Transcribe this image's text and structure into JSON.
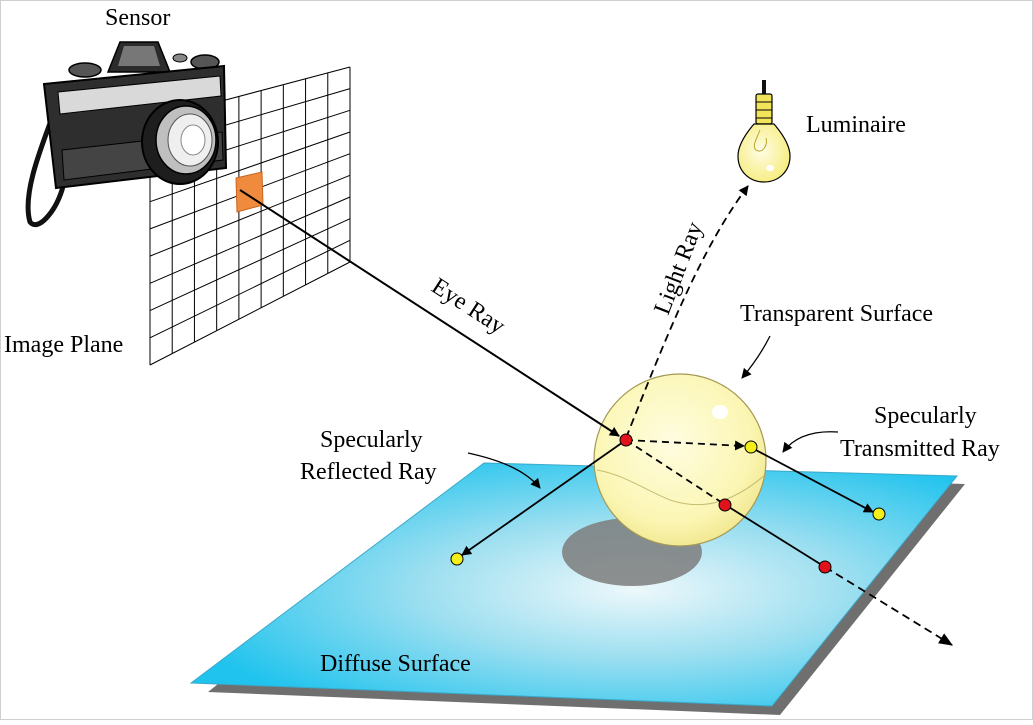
{
  "labels": {
    "sensor": "Sensor",
    "luminaire": "Luminaire",
    "image_plane": "Image Plane",
    "eye_ray": "Eye Ray",
    "light_ray": "Light Ray",
    "transparent_surface": "Transparent Surface",
    "specularly_reflected_line1": "Specularly",
    "specularly_reflected_line2": "Reflected Ray",
    "specularly_transmitted_line1": "Specularly",
    "specularly_transmitted_line2": "Transmitted Ray",
    "diffuse_surface": "Diffuse Surface"
  },
  "colors": {
    "plane_edge": "#1fc3ee",
    "plane_center": "#e9f6fa",
    "plane_shadow": "#6f6f6f",
    "sphere_fill": "#fbf6b4",
    "sphere_stroke": "#a59a55",
    "pixel": "#f08a3c",
    "hit_point_red": "#e0121b",
    "hit_point_yellow": "#f3ef1a",
    "bulb": "#fcf7a0",
    "ray": "#000000"
  }
}
